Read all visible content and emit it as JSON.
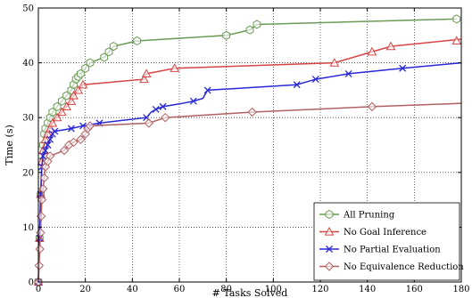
{
  "chart_data": {
    "type": "line",
    "xlabel": "# Tasks Solved",
    "ylabel": "Time (s)",
    "xlim": [
      0,
      180
    ],
    "ylim": [
      0,
      50
    ],
    "x_ticks": [
      0,
      20,
      40,
      60,
      80,
      100,
      120,
      140,
      160,
      180
    ],
    "y_ticks": [
      0,
      10,
      20,
      30,
      40,
      50
    ],
    "x_tick_labels": [
      "0",
      "20",
      "40",
      "60",
      "80",
      "100",
      "120",
      "140",
      "160",
      "180"
    ],
    "y_tick_labels": [
      "0",
      "10",
      "20",
      "30",
      "40",
      "50"
    ],
    "grid": true,
    "legend_position": "bottom-right",
    "series": [
      {
        "name": "All Pruning",
        "color": "#6a9a54",
        "marker": "hexagon",
        "x": [
          0,
          0.5,
          1,
          1.5,
          2,
          2.5,
          3,
          4,
          5,
          6,
          8,
          10,
          12,
          14,
          15,
          16,
          17,
          18,
          20,
          22,
          28,
          30,
          32,
          42,
          80,
          90,
          93,
          178
        ],
        "y": [
          0,
          8,
          16,
          22,
          25,
          27,
          28,
          29,
          30,
          31,
          32,
          33,
          34,
          35,
          36,
          37,
          37.5,
          38,
          39,
          40,
          41,
          42,
          43,
          44,
          45,
          46,
          47,
          48
        ],
        "marker_x": [
          0,
          0.5,
          1,
          1.5,
          2,
          2.5,
          3,
          4,
          5,
          6,
          8,
          10,
          12,
          14,
          15,
          16,
          17,
          18,
          20,
          22,
          28,
          30,
          32,
          42,
          80,
          90,
          93,
          178
        ],
        "marker_y": [
          0,
          8,
          16,
          22,
          25,
          27,
          28,
          29,
          30,
          31,
          32,
          33,
          34,
          35,
          36,
          37,
          37.5,
          38,
          39,
          40,
          41,
          42,
          43,
          44,
          45,
          46,
          47,
          48
        ]
      },
      {
        "name": "No Goal Inference",
        "color": "#d64545",
        "marker": "triangle",
        "x": [
          0,
          0.5,
          1,
          1.5,
          2,
          3,
          4,
          5,
          6,
          8,
          10,
          12,
          14,
          15,
          17,
          19,
          45,
          46,
          58,
          126,
          142,
          150,
          180
        ],
        "y": [
          0,
          8,
          16,
          22,
          24,
          26,
          27,
          28,
          29,
          30,
          31,
          32,
          33,
          34,
          35,
          36,
          37,
          38,
          39,
          40,
          42,
          43,
          44.3
        ],
        "marker_x": [
          0,
          0.5,
          1,
          1.5,
          2,
          3,
          4,
          5,
          6,
          8,
          10,
          12,
          14,
          15,
          17,
          19,
          45,
          46,
          58,
          126,
          142,
          150,
          178
        ],
        "marker_y": [
          0,
          8,
          16,
          22,
          24,
          26,
          27,
          28,
          29,
          30,
          31,
          32,
          33,
          34,
          35,
          36,
          37,
          38,
          39,
          40,
          42,
          43,
          44
        ]
      },
      {
        "name": "No Partial Evaluation",
        "color": "#2828d8",
        "marker": "x",
        "x": [
          0,
          0.5,
          1,
          1.5,
          2,
          3,
          4,
          5,
          6,
          7,
          14,
          19,
          26,
          46,
          48,
          50,
          53,
          60,
          66,
          70,
          72,
          110,
          118,
          132,
          155,
          180
        ],
        "y": [
          0,
          8,
          16,
          21,
          23,
          24,
          25,
          26,
          27,
          27.5,
          28,
          28.5,
          29,
          30,
          31,
          31.5,
          32,
          32.5,
          33,
          33.5,
          35,
          36,
          37,
          38,
          39,
          40
        ],
        "marker_x": [
          0,
          0.5,
          1,
          1.5,
          2,
          3,
          4,
          5,
          6,
          7,
          14,
          19,
          26,
          46,
          50,
          53,
          66,
          72,
          110,
          118,
          132,
          155
        ],
        "marker_y": [
          0,
          8,
          16,
          21,
          23,
          24,
          25,
          26,
          27,
          27.5,
          28,
          28.5,
          29,
          30,
          31.5,
          32,
          33,
          35,
          36,
          37,
          38,
          39
        ]
      },
      {
        "name": "No Equivalence Reduction",
        "color": "#b06060",
        "marker": "diamond",
        "x": [
          0,
          0.3,
          0.6,
          0.9,
          1.2,
          1.5,
          2,
          2.5,
          3,
          4,
          5,
          11,
          13,
          15,
          18,
          20,
          21,
          22,
          47,
          54,
          91,
          142,
          180
        ],
        "y": [
          0,
          3,
          6,
          9,
          12,
          15,
          17,
          19,
          21,
          22,
          23,
          24,
          25,
          25.5,
          26,
          27,
          28,
          28.5,
          29,
          30,
          31,
          32,
          32.6
        ],
        "marker_x": [
          0,
          0.3,
          0.6,
          0.9,
          1.2,
          1.5,
          2,
          2.5,
          3,
          4,
          5,
          11,
          13,
          15,
          18,
          20,
          21,
          22,
          47,
          54,
          91,
          142
        ],
        "marker_y": [
          0,
          3,
          6,
          9,
          12,
          15,
          17,
          19,
          21,
          22,
          23,
          24,
          25,
          25.5,
          26,
          27,
          28,
          28.5,
          29,
          30,
          31,
          32
        ]
      }
    ]
  }
}
